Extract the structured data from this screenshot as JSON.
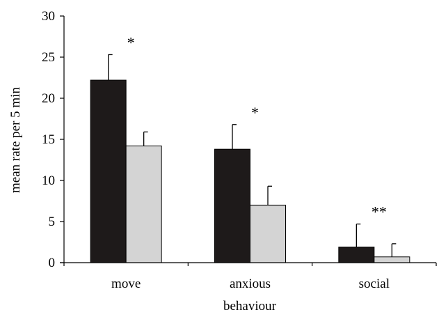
{
  "chart_data": {
    "type": "bar",
    "categories": [
      "move",
      "anxious",
      "social"
    ],
    "series": [
      {
        "values": [
          22.2,
          13.8,
          1.9
        ],
        "errors": [
          3.1,
          3.0,
          2.8
        ],
        "color": "#1e1a1a"
      },
      {
        "values": [
          14.2,
          7.0,
          0.7
        ],
        "errors": [
          1.7,
          2.3,
          1.6
        ],
        "color": "#d4d4d4"
      }
    ],
    "annotations": [
      "*",
      "*",
      "**"
    ],
    "xlabel": "behaviour",
    "ylabel": "mean rate per 5 min",
    "ylim": [
      0,
      30
    ],
    "yticks": [
      0,
      5,
      10,
      15,
      20,
      25,
      30
    ],
    "grid": false,
    "legend": "none"
  }
}
